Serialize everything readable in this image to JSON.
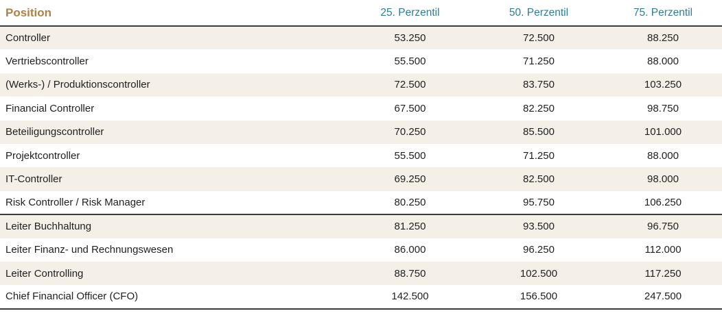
{
  "chart_data": {
    "type": "table",
    "columns": [
      "Position",
      "25. Perzentil",
      "50. Perzentil",
      "75. Perzentil"
    ],
    "sections": [
      {
        "name": "controller-positions",
        "rows": [
          [
            "Controller",
            "53.250",
            "72.500",
            "88.250"
          ],
          [
            "Vertriebscontroller",
            "55.500",
            "71.250",
            "88.000"
          ],
          [
            "(Werks-) / Produktionscontroller",
            "72.500",
            "83.750",
            "103.250"
          ],
          [
            "Financial Controller",
            "67.500",
            "82.250",
            "98.750"
          ],
          [
            "Beteiligungscontroller",
            "70.250",
            "85.500",
            "101.000"
          ],
          [
            "Projektcontroller",
            "55.500",
            "71.250",
            "88.000"
          ],
          [
            "IT-Controller",
            "69.250",
            "82.500",
            "98.000"
          ],
          [
            "Risk Controller / Risk Manager",
            "80.250",
            "95.750",
            "106.250"
          ]
        ]
      },
      {
        "name": "leadership-positions",
        "rows": [
          [
            "Leiter Buchhaltung",
            "81.250",
            "93.500",
            "96.750"
          ],
          [
            "Leiter Finanz- und Rechnungswesen",
            "86.000",
            "96.250",
            "112.000"
          ],
          [
            "Leiter Controlling",
            "88.750",
            "102.500",
            "117.250"
          ],
          [
            "Chief Financial Officer (CFO)",
            "142.500",
            "156.500",
            "247.500"
          ]
        ]
      }
    ]
  },
  "colors": {
    "position_header": "#b08144",
    "percentile_header": "#2e7e95",
    "row_stripe": "#f4f0e8",
    "separator": "#3a3a3a",
    "body_text": "#1f1f1f"
  }
}
